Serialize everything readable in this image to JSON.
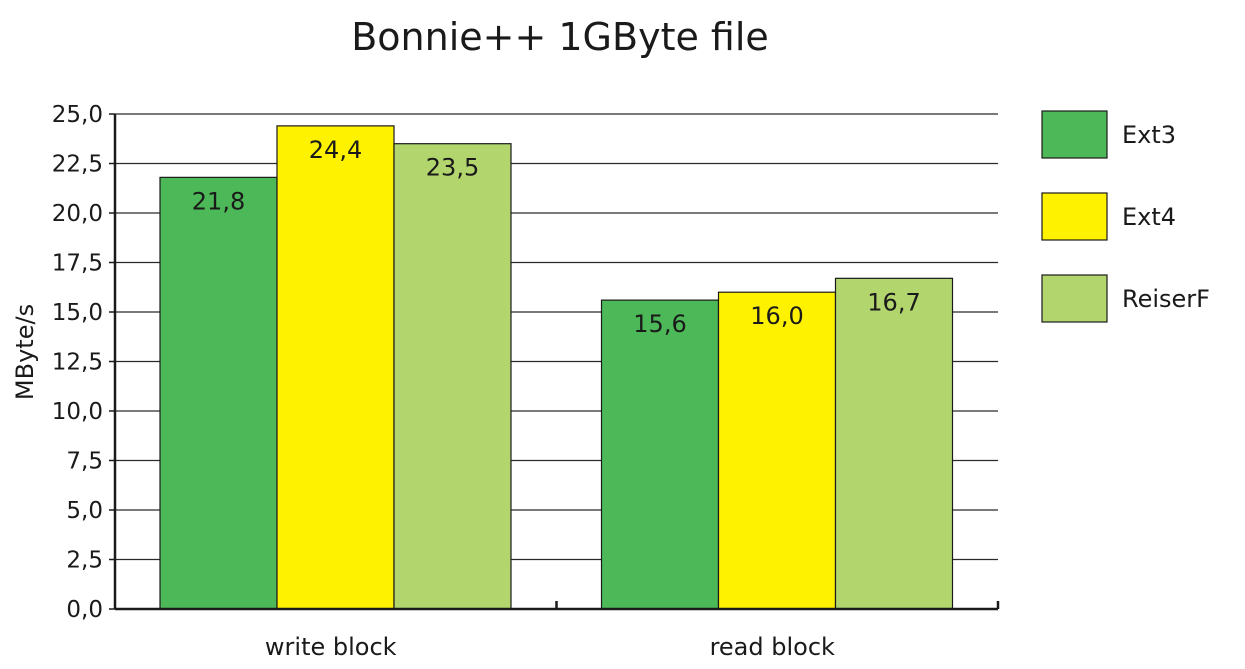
{
  "chart_data": {
    "type": "bar",
    "title": "Bonnie++ 1GByte file",
    "ylabel": "MByte/s",
    "xlabel": "",
    "categories": [
      "write block",
      "read block"
    ],
    "series": [
      {
        "name": "Ext3",
        "color": "#4cb857",
        "values": [
          21.8,
          15.6
        ],
        "labels": [
          "21,8",
          "15,6"
        ]
      },
      {
        "name": "Ext4",
        "color": "#fff200",
        "values": [
          24.4,
          16.0
        ],
        "labels": [
          "24,4",
          "16,0"
        ]
      },
      {
        "name": "ReiserF",
        "color": "#b3d56e",
        "values": [
          23.5,
          16.7
        ],
        "labels": [
          "23,5",
          "16,7"
        ]
      }
    ],
    "ylim": [
      0,
      25
    ],
    "yticks": [
      0,
      2.5,
      5,
      7.5,
      10,
      12.5,
      15,
      17.5,
      20,
      22.5,
      25
    ],
    "ytick_labels": [
      "0,0",
      "2,5",
      "5,0",
      "7,5",
      "10,0",
      "12,5",
      "15,0",
      "17,5",
      "20,0",
      "22,5",
      "25,0"
    ],
    "grid": true,
    "legend": "right"
  }
}
